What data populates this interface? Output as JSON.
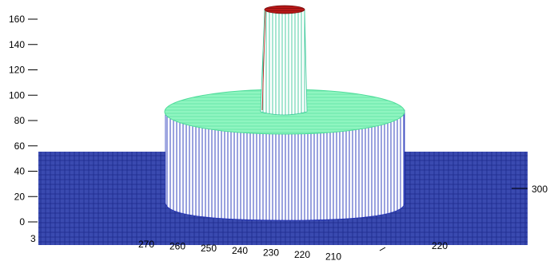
{
  "chart_data": {
    "type": "surface",
    "title": "",
    "xlabel": "",
    "ylabel": "",
    "zlabel": "",
    "z_ticks": [
      0,
      20,
      40,
      60,
      80,
      100,
      120,
      140,
      160
    ],
    "zlim": [
      0,
      170
    ],
    "x_ticks_front": [
      270,
      260,
      250,
      240,
      230,
      220,
      210
    ],
    "y_ticks_right": [
      220,
      300
    ],
    "left_partial_tick": "3",
    "shapes": [
      {
        "name": "base-plane",
        "z": 0,
        "thickness": 55,
        "color": "#2b3a9e"
      },
      {
        "name": "large-cylinder",
        "height": 85,
        "color_top": "#7ff2b8",
        "color_side": "#1a2bb0"
      },
      {
        "name": "small-cylinder",
        "height": 165,
        "color_top": "#b01818",
        "color_side": "#7de8c9"
      }
    ],
    "grid": false,
    "colors": {
      "plane_line": "#1d2a8c",
      "plane_fill": "#3444a8",
      "wall_line": "#1f2fb8",
      "top_line": "#5fe3a5",
      "top_fill": "#8ff5c0",
      "pillar_line": "#45c9a0",
      "pillar_top": "#a81414"
    }
  }
}
